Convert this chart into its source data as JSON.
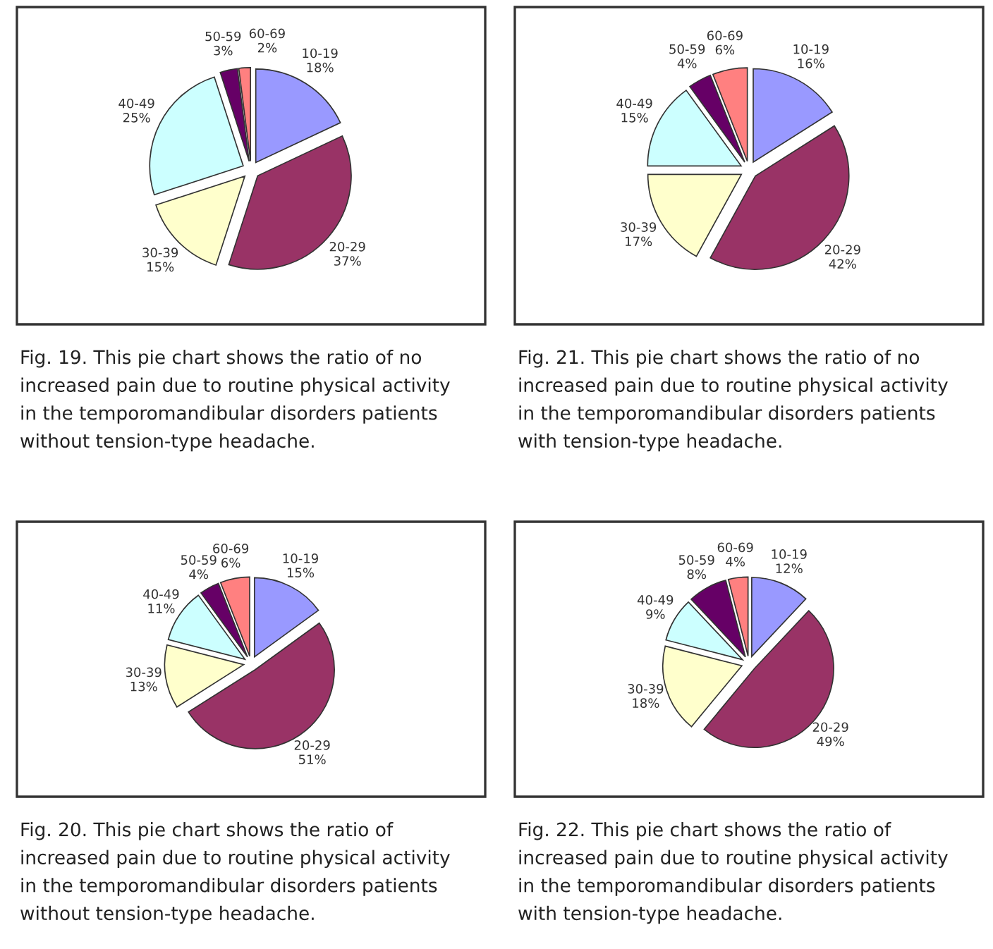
{
  "chart_data": [
    {
      "type": "pie",
      "categories": [
        "10-19",
        "20-29",
        "30-39",
        "40-49",
        "50-59",
        "60-69"
      ],
      "values": [
        18,
        37,
        15,
        25,
        3,
        2
      ],
      "value_labels": [
        "18%",
        "37%",
        "15%",
        "25%",
        "3%",
        "2%"
      ],
      "colors": [
        "#9999ff",
        "#993366",
        "#ffffcc",
        "#ccffff",
        "#660066",
        "#ff8080"
      ],
      "annotations": [
        "Fig. 19. This pie chart shows the ratio of no increased pain due to routine physical activity in the temporomandibular disorders patients without tension-type headache."
      ]
    },
    {
      "type": "pie",
      "categories": [
        "10-19",
        "20-29",
        "30-39",
        "40-49",
        "50-59",
        "60-69"
      ],
      "values": [
        16,
        42,
        17,
        15,
        4,
        6
      ],
      "value_labels": [
        "16%",
        "42%",
        "17%",
        "15%",
        "4%",
        "6%"
      ],
      "colors": [
        "#9999ff",
        "#993366",
        "#ffffcc",
        "#ccffff",
        "#660066",
        "#ff8080"
      ],
      "annotations": [
        "Fig. 21. This pie chart shows the ratio of no increased pain due to routine physical activity in the temporomandibular disorders patients with tension-type headache."
      ]
    },
    {
      "type": "pie",
      "categories": [
        "10-19",
        "20-29",
        "30-39",
        "40-49",
        "50-59",
        "60-69"
      ],
      "values": [
        15,
        51,
        13,
        11,
        4,
        6
      ],
      "value_labels": [
        "15%",
        "51%",
        "13%",
        "11%",
        "4%",
        "6%"
      ],
      "colors": [
        "#9999ff",
        "#993366",
        "#ffffcc",
        "#ccffff",
        "#660066",
        "#ff8080"
      ],
      "annotations": [
        "Fig. 20. This pie chart shows the ratio of increased pain due to routine physical activity in the temporomandibular disorders patients without tension-type headache."
      ]
    },
    {
      "type": "pie",
      "categories": [
        "10-19",
        "20-29",
        "30-39",
        "40-49",
        "50-59",
        "60-69"
      ],
      "values": [
        12,
        49,
        18,
        9,
        8,
        4
      ],
      "value_labels": [
        "12%",
        "49%",
        "18%",
        "9%",
        "8%",
        "4%"
      ],
      "colors": [
        "#9999ff",
        "#993366",
        "#ffffcc",
        "#ccffff",
        "#660066",
        "#ff8080"
      ],
      "annotations": [
        "Fig. 22. This pie chart shows the ratio of increased pain due to routine physical activity in the temporomandibular disorders patients with tension-type headache."
      ]
    }
  ]
}
